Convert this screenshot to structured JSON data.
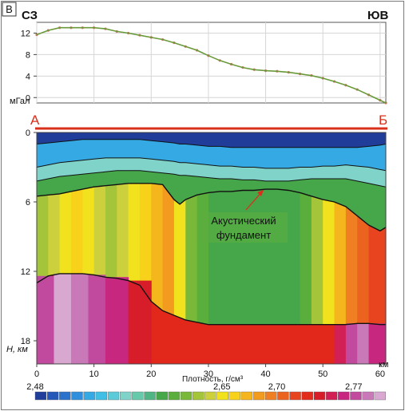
{
  "panel_label": "В",
  "label_left": "СЗ",
  "label_right": "ЮВ",
  "profile_start": "А",
  "profile_end": "Б",
  "annotation": "Акустический фундамент",
  "annotation_lines": [
    "Акустический",
    "фундамент"
  ],
  "colors": {
    "profile_line": "#d9301c",
    "gravity_line": "#6a9a3a",
    "gravity_points": "#d04a3a",
    "annotation_arrow": "#d9301c",
    "basement_fill": "#e2281a"
  },
  "chart_data": [
    {
      "type": "line",
      "name": "gravity",
      "title": "",
      "ylabel": "мГал",
      "xlim": [
        0,
        61
      ],
      "ylim": [
        -1,
        14
      ],
      "yticks": [
        "0",
        "4",
        "8",
        "12"
      ],
      "ytick_values": [
        0,
        4,
        8,
        12
      ],
      "grid": true,
      "x": [
        0,
        2,
        4,
        6,
        8,
        10,
        12,
        14,
        16,
        18,
        20,
        22,
        24,
        26,
        28,
        30,
        32,
        34,
        36,
        38,
        40,
        42,
        44,
        46,
        48,
        50,
        52,
        54,
        56,
        58,
        60,
        61
      ],
      "values": [
        11.7,
        12.5,
        13.0,
        13.0,
        13.0,
        13.0,
        12.8,
        12.3,
        12.0,
        11.6,
        11.2,
        10.8,
        10.2,
        9.5,
        8.8,
        7.8,
        6.9,
        6.2,
        5.6,
        5.2,
        5.0,
        4.9,
        4.7,
        4.4,
        4.1,
        3.6,
        3.0,
        2.3,
        1.5,
        0.5,
        -0.5,
        -1.0
      ]
    },
    {
      "type": "heatmap",
      "name": "density-section",
      "title": "",
      "xlabel": "",
      "ylabel": "H, км",
      "xlim": [
        0,
        61
      ],
      "ylim": [
        0,
        20
      ],
      "xticks": [
        "0",
        "10",
        "20",
        "30",
        "40",
        "50",
        "60"
      ],
      "xtick_values": [
        0,
        10,
        20,
        30,
        40,
        50,
        60
      ],
      "x_unit": "км",
      "yticks": [
        "0",
        "6",
        "12",
        "18"
      ],
      "ytick_values": [
        0,
        6,
        12,
        18
      ],
      "y_inverted": true,
      "colorbar": {
        "label": "Плотность, г/см³",
        "min": 2.48,
        "max": 2.8,
        "tick_labels": [
          "2,48",
          "2,65",
          "2,70",
          "2,77"
        ],
        "tick_values": [
          2.48,
          2.65,
          2.7,
          2.77
        ],
        "colors": [
          "#1f3d99",
          "#2457b8",
          "#2a72cc",
          "#2f8fdc",
          "#35a9e4",
          "#3fbfe6",
          "#5ccbd9",
          "#7fd3c8",
          "#66c9a9",
          "#4fb585",
          "#46a64a",
          "#5aae3c",
          "#7ab83a",
          "#a4c43a",
          "#cdd03d",
          "#f2e21e",
          "#f7d11a",
          "#f5b51c",
          "#f29b1f",
          "#ef7f22",
          "#ec6320",
          "#e94420",
          "#e22c1c",
          "#d81d2a",
          "#d21f55",
          "#c82780",
          "#c24a9e",
          "#c978b8",
          "#d8a8d0"
        ]
      },
      "layers_top_km": {
        "x": [
          0,
          2,
          4,
          6,
          8,
          10,
          12,
          14,
          16,
          18,
          20,
          22,
          24,
          25,
          26,
          28,
          30,
          32,
          34,
          36,
          38,
          40,
          42,
          44,
          46,
          48,
          50,
          52,
          54,
          56,
          58,
          60,
          61
        ],
        "sediment_bottom": [
          1.0,
          0.9,
          0.8,
          0.7,
          0.6,
          0.6,
          0.6,
          0.6,
          0.6,
          0.6,
          0.7,
          0.8,
          0.9,
          1.0,
          1.0,
          1.1,
          1.2,
          1.2,
          1.3,
          1.3,
          1.3,
          1.3,
          1.3,
          1.3,
          1.3,
          1.3,
          1.3,
          1.3,
          1.3,
          1.3,
          1.2,
          1.1,
          1.0
        ],
        "layer2_bottom": [
          3.0,
          2.8,
          2.6,
          2.5,
          2.4,
          2.3,
          2.2,
          2.2,
          2.2,
          2.2,
          2.3,
          2.4,
          2.5,
          2.6,
          2.6,
          2.7,
          2.8,
          2.9,
          2.9,
          3.0,
          3.0,
          3.1,
          3.1,
          3.1,
          3.0,
          3.0,
          2.9,
          2.9,
          2.8,
          2.9,
          3.0,
          3.2,
          3.3
        ],
        "layer3_bottom": [
          4.2,
          4.0,
          3.8,
          3.7,
          3.6,
          3.5,
          3.4,
          3.3,
          3.3,
          3.3,
          3.4,
          3.5,
          3.6,
          3.7,
          3.7,
          3.8,
          3.9,
          4.0,
          4.0,
          4.1,
          4.1,
          4.2,
          4.2,
          4.2,
          4.1,
          4.0,
          4.0,
          4.0,
          4.0,
          4.2,
          4.4,
          4.6,
          4.7
        ],
        "acoustic_basement": [
          5.5,
          5.4,
          5.3,
          5.1,
          4.9,
          4.7,
          4.6,
          4.5,
          4.4,
          4.4,
          4.4,
          4.5,
          5.8,
          6.2,
          5.8,
          5.4,
          5.2,
          5.1,
          5.1,
          5.0,
          5.0,
          4.9,
          4.9,
          5.0,
          5.2,
          5.5,
          5.8,
          6.0,
          6.4,
          7.2,
          8.0,
          8.5,
          8.2
        ],
        "deep_boundary": [
          13.0,
          12.4,
          12.2,
          12.2,
          12.2,
          12.3,
          12.5,
          12.6,
          12.8,
          13.2,
          14.6,
          15.4,
          15.8,
          16.0,
          16.2,
          16.4,
          16.6,
          16.6,
          16.6,
          16.6,
          16.6,
          16.6,
          16.6,
          16.6,
          16.6,
          16.6,
          16.6,
          16.6,
          16.6,
          16.5,
          16.5,
          16.6,
          16.6
        ]
      }
    }
  ]
}
